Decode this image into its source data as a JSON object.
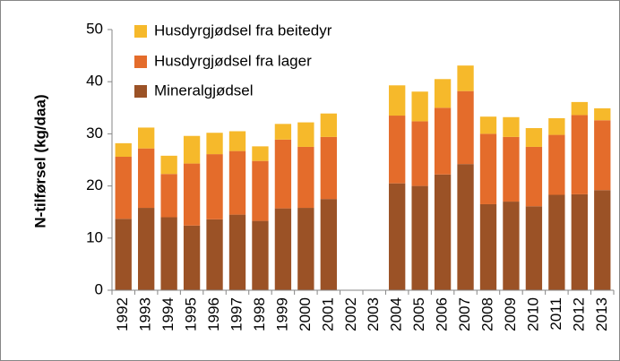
{
  "chart_data": {
    "type": "bar",
    "stacked": true,
    "y_label": "N-tilførsel (kg/daa)",
    "categories": [
      "1992",
      "1993",
      "1994",
      "1995",
      "1996",
      "1997",
      "1998",
      "1999",
      "2000",
      "2001",
      "2002",
      "2003",
      "2004",
      "2005",
      "2006",
      "2007",
      "2008",
      "2009",
      "2010",
      "2011",
      "2012",
      "2013"
    ],
    "series": [
      {
        "name": "Mineralgjødsel",
        "color": "#9b5226",
        "values": [
          13.7,
          15.8,
          14.0,
          12.4,
          13.6,
          14.5,
          13.3,
          15.7,
          15.8,
          17.5,
          null,
          null,
          20.5,
          20.0,
          22.2,
          24.2,
          16.5,
          17.0,
          16.1,
          18.3,
          18.4,
          19.2
        ]
      },
      {
        "name": "Husdyrgjødsel fra lager",
        "color": "#e46c2b",
        "values": [
          11.9,
          11.4,
          8.3,
          11.9,
          12.5,
          12.2,
          11.5,
          13.2,
          11.7,
          11.9,
          null,
          null,
          13.0,
          12.4,
          12.8,
          14.0,
          13.5,
          12.4,
          11.4,
          11.5,
          15.2,
          13.4
        ]
      },
      {
        "name": "Husdyrgjødsel fra beitedyr",
        "color": "#f6b92b",
        "values": [
          2.6,
          4.0,
          3.5,
          5.3,
          4.1,
          3.8,
          2.8,
          3.0,
          4.7,
          4.5,
          null,
          null,
          5.8,
          5.7,
          5.5,
          4.9,
          3.3,
          3.8,
          3.6,
          3.2,
          2.5,
          2.3
        ]
      }
    ],
    "ylim": [
      0,
      50
    ],
    "yticks": [
      0,
      10,
      20,
      30,
      40,
      50
    ],
    "legend": "upper left"
  }
}
